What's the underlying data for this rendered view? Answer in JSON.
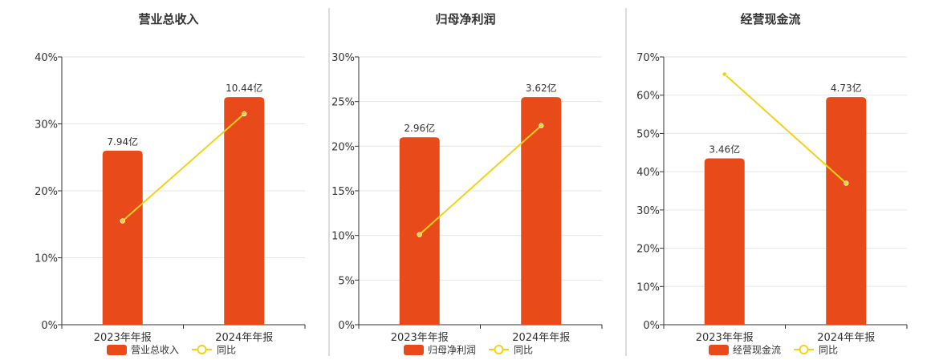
{
  "colors": {
    "bar": "#E84A19",
    "line": "#F2D21A",
    "grid": "#E6E6E6",
    "axis": "#333333",
    "text": "#333333",
    "divider": "#BBBBBB"
  },
  "legend_line_label": "同比",
  "chart_data": [
    {
      "type": "bar",
      "title": "营业总收入",
      "categories": [
        "2023年年报",
        "2024年年报"
      ],
      "ylim": [
        0,
        40
      ],
      "yticks": [
        0,
        10,
        20,
        30,
        40
      ],
      "tick_suffix": "%",
      "series": [
        {
          "name": "营业总收入",
          "type": "bar",
          "values": [
            26,
            34
          ],
          "labels": [
            "7.94亿",
            "10.44亿"
          ]
        },
        {
          "name": "同比",
          "type": "line",
          "values": [
            15.5,
            31.5
          ]
        }
      ],
      "legend": "bottom",
      "grid": true
    },
    {
      "type": "bar",
      "title": "归母净利润",
      "categories": [
        "2023年年报",
        "2024年年报"
      ],
      "ylim": [
        0,
        30
      ],
      "yticks": [
        0,
        5,
        10,
        15,
        20,
        25,
        30
      ],
      "tick_suffix": "%",
      "series": [
        {
          "name": "归母净利润",
          "type": "bar",
          "values": [
            21,
            25.5
          ],
          "labels": [
            "2.96亿",
            "3.62亿"
          ]
        },
        {
          "name": "同比",
          "type": "line",
          "values": [
            10.1,
            22.3
          ]
        }
      ],
      "legend": "bottom",
      "grid": true
    },
    {
      "type": "bar",
      "title": "经营现金流",
      "categories": [
        "2023年年报",
        "2024年年报"
      ],
      "ylim": [
        0,
        70
      ],
      "yticks": [
        0,
        10,
        20,
        30,
        40,
        50,
        60,
        70
      ],
      "tick_suffix": "%",
      "series": [
        {
          "name": "经营现金流",
          "type": "bar",
          "values": [
            43.5,
            59.5
          ],
          "labels": [
            "3.46亿",
            "4.73亿"
          ]
        },
        {
          "name": "同比",
          "type": "line",
          "values": [
            65.5,
            37
          ]
        }
      ],
      "legend": "bottom",
      "grid": true
    }
  ]
}
